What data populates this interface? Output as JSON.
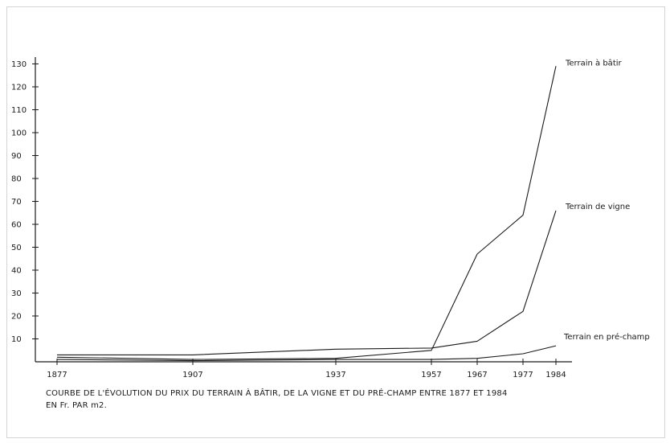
{
  "caption": {
    "line1": "COURBE DE L'ÉVOLUTION DU PRIX DU TERRAIN À BÂTIR, DE LA VIGNE ET DU PRÉ-CHAMP ENTRE 1877 ET 1984",
    "line2": "EN Fr. PAR m2."
  },
  "chart_data": {
    "type": "line",
    "title": "",
    "xlabel": "",
    "ylabel": "",
    "x_ticks": [
      1877,
      1907,
      1937,
      1957,
      1967,
      1977,
      1984
    ],
    "y_ticks": [
      10,
      20,
      30,
      40,
      50,
      60,
      70,
      80,
      90,
      100,
      110,
      120,
      130
    ],
    "ylim": [
      0,
      135
    ],
    "grid": false,
    "series": [
      {
        "name": "Terrain à bâtir",
        "points": [
          [
            1877,
            2
          ],
          [
            1907,
            1
          ],
          [
            1937,
            1.5
          ],
          [
            1957,
            5
          ],
          [
            1967,
            47
          ],
          [
            1977,
            64
          ],
          [
            1984,
            129
          ]
        ]
      },
      {
        "name": "Terrain de vigne",
        "points": [
          [
            1877,
            3
          ],
          [
            1907,
            3
          ],
          [
            1937,
            5.5
          ],
          [
            1957,
            6
          ],
          [
            1967,
            9
          ],
          [
            1977,
            22
          ],
          [
            1984,
            66
          ]
        ]
      },
      {
        "name": "Terrain en pré-champ",
        "points": [
          [
            1877,
            1
          ],
          [
            1907,
            0.5
          ],
          [
            1937,
            1
          ],
          [
            1957,
            1
          ],
          [
            1967,
            1.5
          ],
          [
            1977,
            3.5
          ],
          [
            1984,
            7
          ]
        ]
      }
    ]
  }
}
